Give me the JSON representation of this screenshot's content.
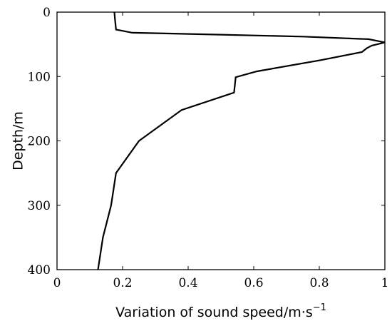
{
  "chart_data": {
    "type": "line",
    "title": "",
    "xlabel": "Variation of sound speed/m·s",
    "xlabel_superscript": "−1",
    "ylabel": "Depth/m",
    "xlim": [
      0,
      1
    ],
    "ylim": [
      0,
      400
    ],
    "y_inverted": true,
    "grid": false,
    "x_ticks": [
      0,
      0.2,
      0.4,
      0.6,
      0.8,
      1
    ],
    "x_tick_labels": [
      "0",
      "0.2",
      "0.4",
      "0.6",
      "0.8",
      "1"
    ],
    "y_ticks": [
      0,
      100,
      200,
      300,
      400
    ],
    "y_tick_labels": [
      "0",
      "100",
      "200",
      "300",
      "400"
    ],
    "series": [
      {
        "x": [
          0.175,
          0.177,
          0.18,
          0.23,
          0.5,
          0.75,
          0.95,
          1.0,
          0.96,
          0.945,
          0.93,
          0.8,
          0.61,
          0.545,
          0.54,
          0.38,
          0.25,
          0.18,
          0.165,
          0.14,
          0.125
        ],
        "y": [
          0,
          12,
          27,
          32,
          35,
          38,
          42,
          47,
          52,
          56,
          62,
          75,
          92,
          101,
          125,
          152,
          200,
          250,
          300,
          350,
          400
        ]
      }
    ]
  }
}
